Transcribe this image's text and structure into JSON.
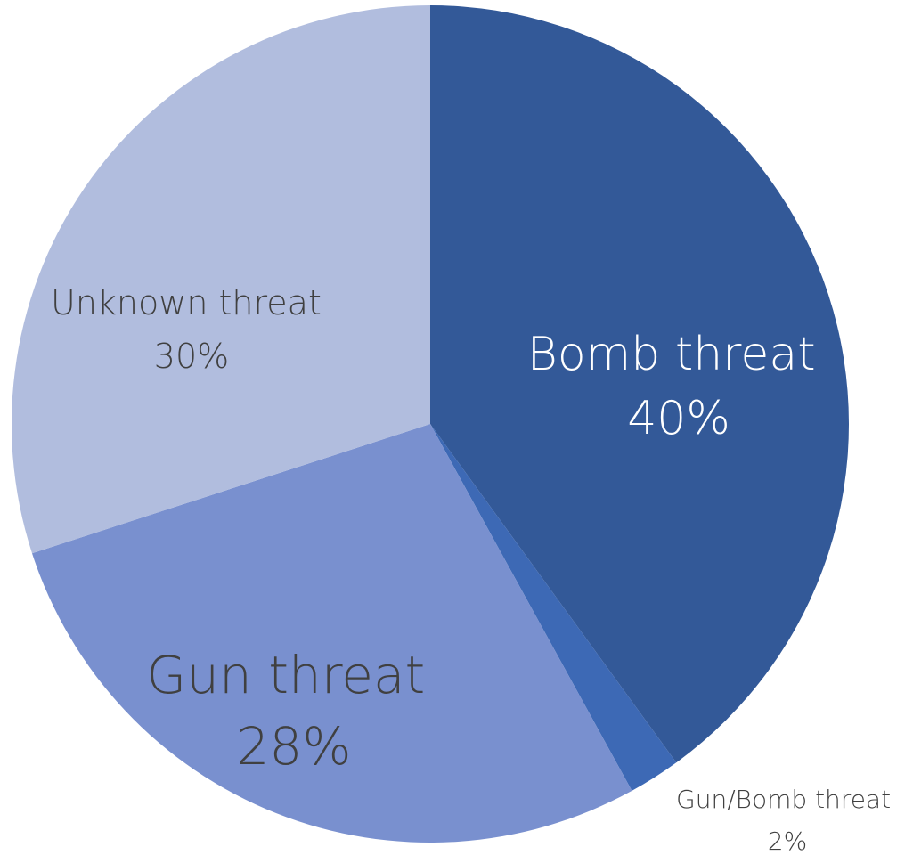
{
  "chart_data": {
    "type": "pie",
    "start_angle_deg": 0,
    "direction": "clockwise",
    "slices": [
      {
        "name": "Bomb threat",
        "percent_label": "40%",
        "value": 40,
        "color": "#335998"
      },
      {
        "name": "Gun/Bomb threat",
        "percent_label": "2%",
        "value": 2,
        "color": "#3D69B5"
      },
      {
        "name": "Gun threat",
        "percent_label": "28%",
        "value": 28,
        "color": "#7990CF"
      },
      {
        "name": "Unknown threat",
        "percent_label": "30%",
        "value": 30,
        "color": "#B1BDDE"
      }
    ]
  }
}
